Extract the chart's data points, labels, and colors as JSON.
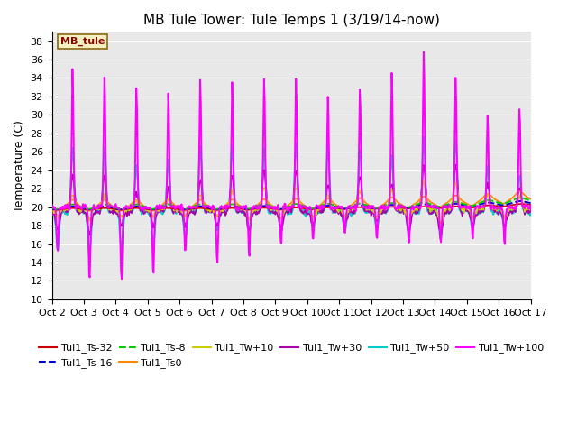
{
  "title": "MB Tule Tower: Tule Temps 1 (3/19/14-now)",
  "ylabel": "Temperature (C)",
  "ylim": [
    10,
    39
  ],
  "yticks": [
    10,
    12,
    14,
    16,
    18,
    20,
    22,
    24,
    26,
    28,
    30,
    32,
    34,
    36,
    38
  ],
  "x_labels": [
    "Oct 2",
    "Oct 3",
    "Oct 4",
    "Oct 5",
    "Oct 6",
    "Oct 7",
    "Oct 8",
    "Oct 9",
    "Oct 10",
    "Oct 11",
    "Oct 12",
    "Oct 13",
    "Oct 14",
    "Oct 15",
    "Oct 16",
    "Oct 17"
  ],
  "bg_color": "#e8e8e8",
  "legend_box_facecolor": "#f5f0c0",
  "legend_box_edgecolor": "#8b6914",
  "legend_box_textcolor": "#8b0000",
  "series_colors": {
    "Tul1_Ts-32": "#cc0000",
    "Tul1_Ts-16": "#0000cc",
    "Tul1_Ts-8": "#00cc00",
    "Tul1_Ts0": "#ff8800",
    "Tul1_Tw+10": "#cccc00",
    "Tul1_Tw+30": "#aa00aa",
    "Tul1_Tw+50": "#00cccc",
    "Tul1_Tw+100": "#ff00ff"
  },
  "series_lw": {
    "Tul1_Ts-32": 1.2,
    "Tul1_Ts-16": 1.4,
    "Tul1_Ts-8": 1.4,
    "Tul1_Ts0": 1.2,
    "Tul1_Tw+10": 1.2,
    "Tul1_Tw+30": 1.2,
    "Tul1_Tw+50": 1.4,
    "Tul1_Tw+100": 1.4
  },
  "series_ls": {
    "Tul1_Ts-32": "-",
    "Tul1_Ts-16": "--",
    "Tul1_Ts-8": "--",
    "Tul1_Ts0": "-",
    "Tul1_Tw+10": "-",
    "Tul1_Tw+30": "-",
    "Tul1_Tw+50": "-",
    "Tul1_Tw+100": "-"
  },
  "legend_order": [
    "Tul1_Ts-32",
    "Tul1_Ts-16",
    "Tul1_Ts-8",
    "Tul1_Ts0",
    "Tul1_Tw+10",
    "Tul1_Tw+30",
    "Tul1_Tw+50",
    "Tul1_Tw+100"
  ]
}
